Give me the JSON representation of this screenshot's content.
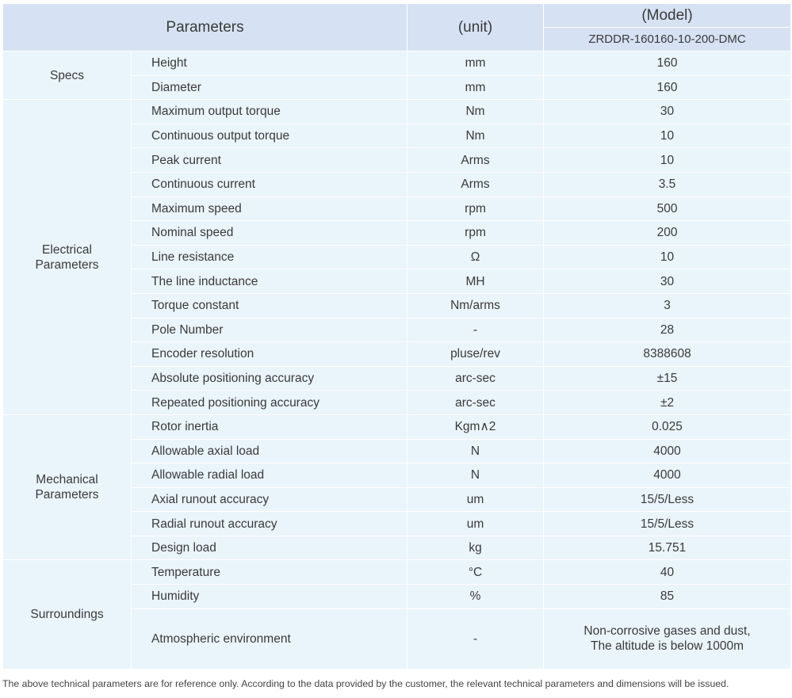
{
  "header": {
    "parameters": "Parameters",
    "unit": "(unit)",
    "model": "(Model)",
    "model_name": "ZRDDR-160160-10-200-DMC"
  },
  "groups": [
    {
      "name": "Specs",
      "rows": [
        [
          "Height",
          "mm",
          "160"
        ],
        [
          "Diameter",
          "mm",
          "160"
        ]
      ]
    },
    {
      "name": "Electrical\nParameters",
      "rows": [
        [
          "Maximum output torque",
          "Nm",
          "30"
        ],
        [
          "Continuous output torque",
          "Nm",
          "10"
        ],
        [
          "Peak current",
          "Arms",
          "10"
        ],
        [
          "Continuous current",
          "Arms",
          "3.5"
        ],
        [
          "Maximum speed",
          "rpm",
          "500"
        ],
        [
          "Nominal speed",
          "rpm",
          "200"
        ],
        [
          "Line resistance",
          "Ω",
          "10"
        ],
        [
          "The line inductance",
          "MH",
          "30"
        ],
        [
          "Torque constant",
          "Nm/arms",
          "3"
        ],
        [
          "Pole Number",
          "-",
          "28"
        ],
        [
          "Encoder resolution",
          "pluse/rev",
          "8388608"
        ],
        [
          "Absolute positioning accuracy",
          "arc-sec",
          "±15"
        ],
        [
          "Repeated positioning accuracy",
          "arc-sec",
          "±2"
        ]
      ]
    },
    {
      "name": "Mechanical\nParameters",
      "rows": [
        [
          "Rotor inertia",
          "Kgm∧2",
          "0.025"
        ],
        [
          "Allowable axial load",
          "N",
          "4000"
        ],
        [
          "Allowable radial load",
          "N",
          "4000"
        ],
        [
          "Axial runout accuracy",
          "um",
          "15/5/Less"
        ],
        [
          "Radial runout accuracy",
          "um",
          "15/5/Less"
        ],
        [
          "Design load",
          "kg",
          "15.751"
        ]
      ]
    },
    {
      "name": "Surroundings",
      "rows": [
        [
          "Temperature",
          "°C",
          "40"
        ],
        [
          "Humidity",
          "%",
          "85"
        ],
        [
          "Atmospheric environment",
          "-",
          "Non-corrosive gases and dust,\nThe altitude is below 1000m"
        ]
      ]
    }
  ],
  "footnote": "The above technical parameters are for reference only. According to the data provided by the customer, the relevant technical parameters and dimensions will be issued."
}
